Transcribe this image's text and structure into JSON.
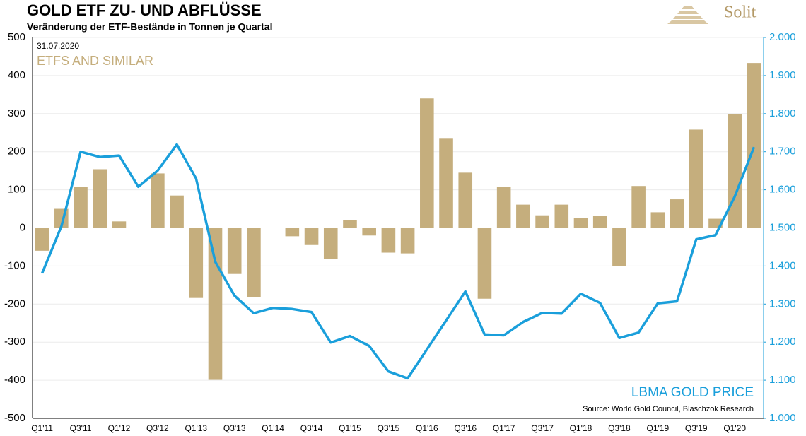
{
  "chart_data": {
    "type": "bar_line",
    "title": "GOLD ETF ZU- UND ABFLÜSSE",
    "subtitle": "Veränderung der ETF-Bestände in Tonnen je Quartal",
    "date": "31.07.2020",
    "source": "Source: World Gold Council, Blaschzok Research",
    "logo": "Solit",
    "categories": [
      "Q1'11",
      null,
      "Q3'11",
      null,
      "Q1'12",
      null,
      "Q3'12",
      null,
      "Q1'13",
      null,
      "Q3'13",
      null,
      "Q1'14",
      null,
      "Q3'14",
      null,
      "Q1'15",
      null,
      "Q3'15",
      null,
      "Q1'16",
      null,
      "Q3'16",
      null,
      "Q1'17",
      null,
      "Q3'17",
      null,
      "Q1'18",
      null,
      "Q3'18",
      null,
      "Q1'19",
      null,
      "Q3'19",
      null,
      "Q1'20",
      null
    ],
    "series": [
      {
        "name": "ETFS AND SIMILAR",
        "type": "bar",
        "color": "#c5ae7d",
        "values": [
          -60,
          50,
          108,
          154,
          17,
          0,
          143,
          85,
          -184,
          -399,
          -121,
          -182,
          0,
          -22,
          -45,
          -82,
          20,
          -20,
          -65,
          -67,
          340,
          236,
          145,
          -186,
          108,
          61,
          33,
          61,
          26,
          32,
          -100,
          110,
          41,
          75,
          258,
          24,
          299,
          433
        ]
      },
      {
        "name": "LBMA GOLD PRICE",
        "type": "line",
        "axis": "y2",
        "color": "#1a9fdb",
        "values": [
          1381,
          1504,
          1700,
          1686,
          1690,
          1608,
          1650,
          1719,
          1630,
          1411,
          1322,
          1276,
          1290,
          1287,
          1279,
          1199,
          1216,
          1190,
          1123,
          1105,
          1181,
          1257,
          1333,
          1220,
          1218,
          1253,
          1277,
          1275,
          1327,
          1303,
          1211,
          1225,
          1302,
          1307,
          1470,
          1481,
          1582,
          1712
        ]
      }
    ],
    "ylim": [
      -500,
      500
    ],
    "yticks": [
      -500,
      -400,
      -300,
      -200,
      -100,
      0,
      100,
      200,
      300,
      400,
      500
    ],
    "y2lim": [
      1000,
      2000
    ],
    "y2ticks": [
      {
        "value": 1000,
        "label": "1.000"
      },
      {
        "value": 1100,
        "label": "1.100"
      },
      {
        "value": 1200,
        "label": "1.200"
      },
      {
        "value": 1300,
        "label": "1.300"
      },
      {
        "value": 1400,
        "label": "1.400"
      },
      {
        "value": 1500,
        "label": "1.500"
      },
      {
        "value": 1600,
        "label": "1.600"
      },
      {
        "value": 1700,
        "label": "1.700"
      },
      {
        "value": 1800,
        "label": "1.800"
      },
      {
        "value": 1900,
        "label": "1.900"
      },
      {
        "value": 2000,
        "label": "2.000"
      }
    ],
    "grid": true
  }
}
